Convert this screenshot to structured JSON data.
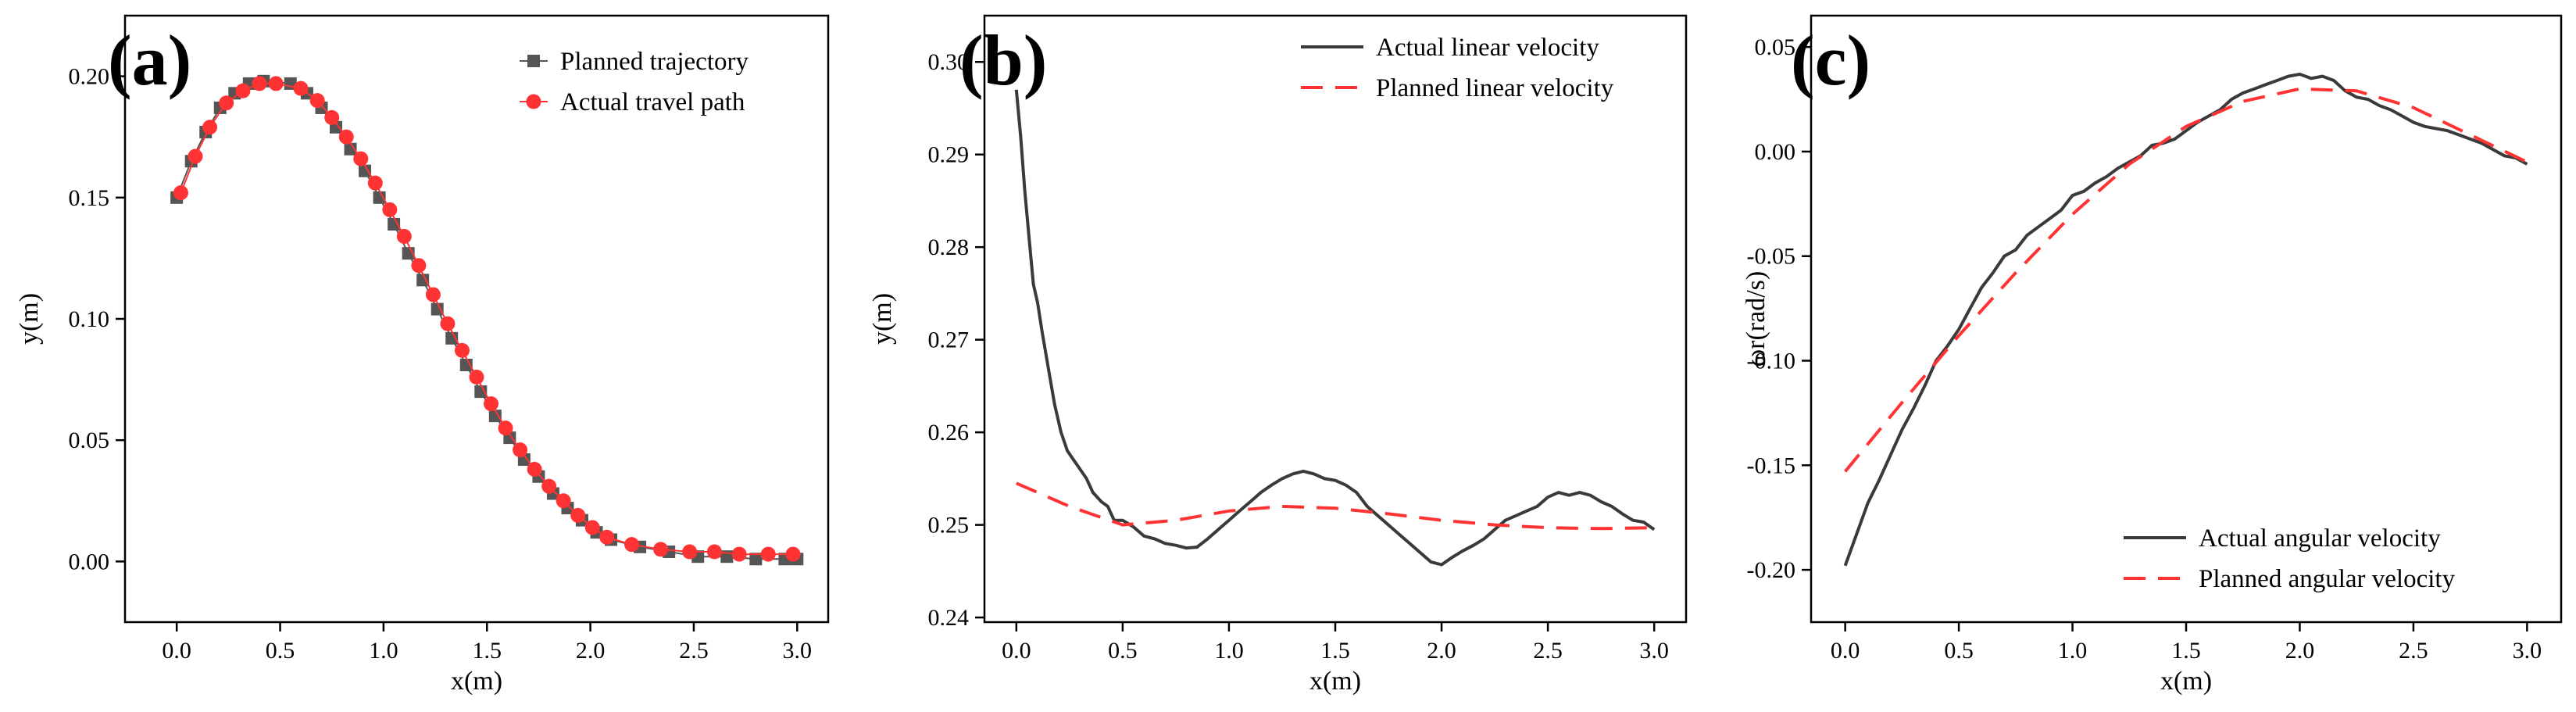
{
  "chart_data": [
    {
      "type": "scatter",
      "panel_label": "(a)",
      "xlabel": "x(m)",
      "ylabel": "y(m)",
      "xlim": [
        -0.25,
        3.15
      ],
      "ylim": [
        -0.025,
        0.225
      ],
      "xticks": [
        0.0,
        0.5,
        1.0,
        1.5,
        2.0,
        2.5,
        3.0
      ],
      "xtick_labels": [
        "0.0",
        "0.5",
        "1.0",
        "1.5",
        "2.0",
        "2.5",
        "3.0"
      ],
      "yticks": [
        0.0,
        0.05,
        0.1,
        0.15,
        0.2
      ],
      "ytick_labels": [
        "0.00",
        "0.05",
        "0.10",
        "0.15",
        "0.20"
      ],
      "legend_position": "top-right",
      "series": [
        {
          "name": "Planned trajectory",
          "color": "#555555",
          "marker": "square",
          "x": [
            0.0,
            0.07,
            0.14,
            0.21,
            0.28,
            0.35,
            0.42,
            0.55,
            0.63,
            0.7,
            0.77,
            0.84,
            0.91,
            0.98,
            1.05,
            1.12,
            1.19,
            1.26,
            1.33,
            1.4,
            1.47,
            1.54,
            1.61,
            1.68,
            1.75,
            1.82,
            1.89,
            1.96,
            2.03,
            2.1,
            2.24,
            2.38,
            2.52,
            2.66,
            2.8,
            2.94,
            3.0
          ],
          "y": [
            0.15,
            0.165,
            0.177,
            0.187,
            0.193,
            0.197,
            0.198,
            0.197,
            0.193,
            0.187,
            0.179,
            0.17,
            0.161,
            0.15,
            0.139,
            0.127,
            0.116,
            0.104,
            0.092,
            0.081,
            0.07,
            0.06,
            0.051,
            0.042,
            0.035,
            0.028,
            0.022,
            0.017,
            0.012,
            0.009,
            0.006,
            0.004,
            0.002,
            0.002,
            0.001,
            0.001,
            0.001
          ]
        },
        {
          "name": "Actual travel path",
          "color": "#ff3333",
          "marker": "circle",
          "x": [
            0.02,
            0.09,
            0.16,
            0.24,
            0.32,
            0.4,
            0.48,
            0.6,
            0.68,
            0.75,
            0.82,
            0.89,
            0.96,
            1.03,
            1.1,
            1.17,
            1.24,
            1.31,
            1.38,
            1.45,
            1.52,
            1.59,
            1.66,
            1.73,
            1.8,
            1.87,
            1.94,
            2.01,
            2.08,
            2.2,
            2.34,
            2.48,
            2.6,
            2.72,
            2.86,
            2.98
          ],
          "y": [
            0.152,
            0.167,
            0.179,
            0.189,
            0.194,
            0.197,
            0.197,
            0.195,
            0.19,
            0.183,
            0.175,
            0.166,
            0.156,
            0.145,
            0.134,
            0.122,
            0.11,
            0.098,
            0.087,
            0.076,
            0.065,
            0.055,
            0.046,
            0.038,
            0.031,
            0.025,
            0.019,
            0.014,
            0.01,
            0.007,
            0.005,
            0.004,
            0.004,
            0.003,
            0.003,
            0.003
          ]
        }
      ]
    },
    {
      "type": "line",
      "panel_label": "(b)",
      "xlabel": "x(m)",
      "ylabel": "y(m)",
      "xlim": [
        -0.15,
        3.15
      ],
      "ylim": [
        0.2395,
        0.305
      ],
      "xticks": [
        0.0,
        0.5,
        1.0,
        1.5,
        2.0,
        2.5,
        3.0
      ],
      "xtick_labels": [
        "0.0",
        "0.5",
        "1.0",
        "1.5",
        "2.0",
        "2.5",
        "3.0"
      ],
      "yticks": [
        0.24,
        0.25,
        0.26,
        0.27,
        0.28,
        0.29,
        0.3
      ],
      "ytick_labels": [
        "0.24",
        "0.25",
        "0.26",
        "0.27",
        "0.28",
        "0.29",
        "0.30"
      ],
      "legend_position": "top-right",
      "series": [
        {
          "name": "Actual linear velocity",
          "color": "#3a3a3a",
          "dash": "solid",
          "x": [
            0.0,
            0.02,
            0.04,
            0.06,
            0.08,
            0.1,
            0.12,
            0.15,
            0.18,
            0.21,
            0.24,
            0.27,
            0.3,
            0.33,
            0.36,
            0.4,
            0.43,
            0.46,
            0.5,
            0.55,
            0.6,
            0.65,
            0.7,
            0.75,
            0.8,
            0.85,
            0.9,
            0.95,
            1.0,
            1.05,
            1.1,
            1.15,
            1.2,
            1.25,
            1.3,
            1.35,
            1.4,
            1.45,
            1.5,
            1.55,
            1.6,
            1.65,
            1.7,
            1.75,
            1.8,
            1.85,
            1.9,
            1.95,
            2.0,
            2.05,
            2.1,
            2.15,
            2.2,
            2.25,
            2.3,
            2.35,
            2.4,
            2.45,
            2.5,
            2.55,
            2.6,
            2.65,
            2.7,
            2.75,
            2.8,
            2.85,
            2.9,
            2.95,
            3.0
          ],
          "y": [
            0.297,
            0.292,
            0.286,
            0.281,
            0.276,
            0.274,
            0.271,
            0.267,
            0.263,
            0.26,
            0.258,
            0.257,
            0.256,
            0.255,
            0.2535,
            0.2525,
            0.252,
            0.2505,
            0.2505,
            0.2498,
            0.2488,
            0.2485,
            0.248,
            0.2478,
            0.2475,
            0.2476,
            0.2485,
            0.2495,
            0.2505,
            0.2515,
            0.2525,
            0.2535,
            0.2543,
            0.255,
            0.2555,
            0.2558,
            0.2555,
            0.255,
            0.2548,
            0.2543,
            0.2535,
            0.252,
            0.251,
            0.25,
            0.249,
            0.248,
            0.247,
            0.246,
            0.2457,
            0.2465,
            0.2472,
            0.2478,
            0.2485,
            0.2495,
            0.2505,
            0.251,
            0.2515,
            0.252,
            0.253,
            0.2535,
            0.2532,
            0.2535,
            0.2532,
            0.2525,
            0.252,
            0.2512,
            0.2505,
            0.2503,
            0.2495
          ]
        },
        {
          "name": "Planned linear velocity",
          "color": "#ff3333",
          "dash": "dashed",
          "x": [
            0.0,
            0.25,
            0.5,
            0.75,
            1.0,
            1.25,
            1.5,
            1.75,
            2.0,
            2.25,
            2.5,
            2.75,
            3.0
          ],
          "y": [
            0.2545,
            0.252,
            0.25,
            0.2505,
            0.2515,
            0.252,
            0.2518,
            0.2512,
            0.2505,
            0.25,
            0.2497,
            0.2496,
            0.2497
          ]
        }
      ]
    },
    {
      "type": "line",
      "panel_label": "(c)",
      "xlabel": "x(m)",
      "ylabel": "ωr(rad/s)",
      "xlim": [
        -0.15,
        3.15
      ],
      "ylim": [
        -0.225,
        0.065
      ],
      "xticks": [
        0.0,
        0.5,
        1.0,
        1.5,
        2.0,
        2.5,
        3.0
      ],
      "xtick_labels": [
        "0.0",
        "0.5",
        "1.0",
        "1.5",
        "2.0",
        "2.5",
        "3.0"
      ],
      "yticks": [
        -0.2,
        -0.15,
        -0.1,
        -0.05,
        0.0,
        0.05
      ],
      "ytick_labels": [
        "-0.20",
        "-0.15",
        "-0.10",
        "-0.05",
        "0.00",
        "0.05"
      ],
      "legend_position": "bottom-right",
      "series": [
        {
          "name": "Actual angular velocity",
          "color": "#3a3a3a",
          "dash": "solid",
          "x": [
            0.0,
            0.05,
            0.1,
            0.15,
            0.2,
            0.25,
            0.3,
            0.35,
            0.4,
            0.45,
            0.5,
            0.55,
            0.6,
            0.65,
            0.7,
            0.75,
            0.8,
            0.85,
            0.9,
            0.95,
            1.0,
            1.05,
            1.1,
            1.15,
            1.2,
            1.25,
            1.3,
            1.35,
            1.4,
            1.45,
            1.5,
            1.55,
            1.6,
            1.65,
            1.7,
            1.75,
            1.8,
            1.85,
            1.9,
            1.95,
            2.0,
            2.05,
            2.1,
            2.15,
            2.2,
            2.25,
            2.3,
            2.35,
            2.4,
            2.45,
            2.5,
            2.55,
            2.6,
            2.65,
            2.7,
            2.75,
            2.8,
            2.85,
            2.9,
            2.95,
            3.0
          ],
          "y": [
            -0.198,
            -0.183,
            -0.168,
            -0.157,
            -0.145,
            -0.133,
            -0.123,
            -0.112,
            -0.1,
            -0.093,
            -0.085,
            -0.075,
            -0.065,
            -0.058,
            -0.05,
            -0.047,
            -0.04,
            -0.036,
            -0.032,
            -0.028,
            -0.021,
            -0.019,
            -0.015,
            -0.012,
            -0.008,
            -0.005,
            -0.002,
            0.003,
            0.004,
            0.006,
            0.01,
            0.014,
            0.017,
            0.02,
            0.025,
            0.028,
            0.03,
            0.032,
            0.034,
            0.036,
            0.037,
            0.035,
            0.036,
            0.034,
            0.029,
            0.026,
            0.025,
            0.022,
            0.02,
            0.017,
            0.014,
            0.012,
            0.011,
            0.01,
            0.008,
            0.006,
            0.004,
            0.001,
            -0.002,
            -0.003,
            -0.006
          ]
        },
        {
          "name": "Planned angular velocity",
          "color": "#ff3333",
          "dash": "dashed",
          "x": [
            0.0,
            0.25,
            0.5,
            0.75,
            1.0,
            1.25,
            1.5,
            1.75,
            2.0,
            2.25,
            2.5,
            2.75,
            3.0
          ],
          "y": [
            -0.153,
            -0.12,
            -0.088,
            -0.058,
            -0.03,
            -0.006,
            0.012,
            0.024,
            0.03,
            0.029,
            0.021,
            0.008,
            -0.005
          ]
        }
      ]
    }
  ]
}
